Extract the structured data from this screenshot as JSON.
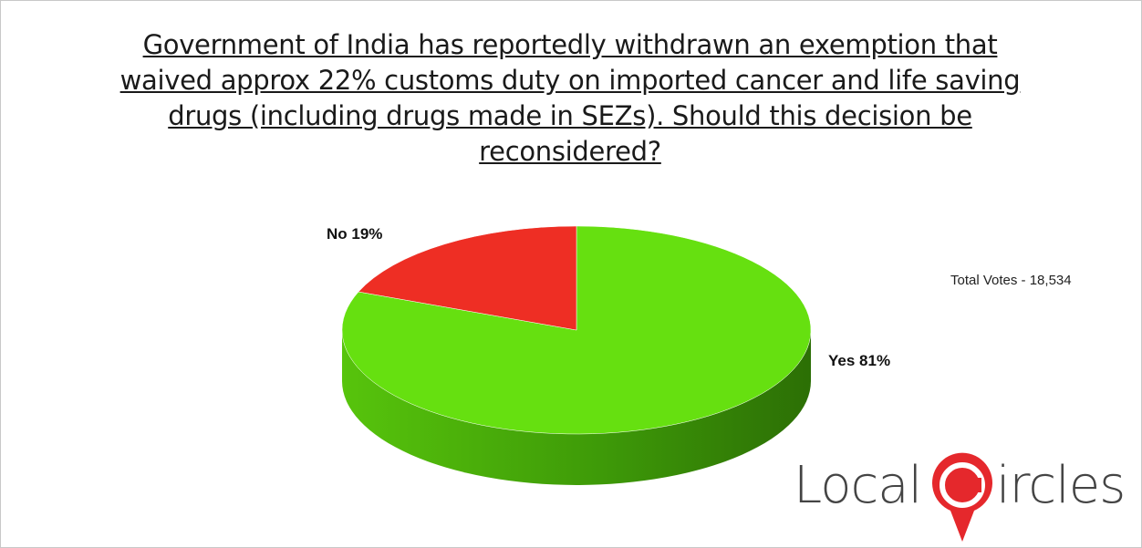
{
  "chart_data": {
    "type": "pie",
    "title": "Government of India has reportedly withdrawn an exemption that waived approx 22% customs duty on imported cancer and life saving drugs (including drugs made in SEZs). Should this decision be reconsidered?",
    "slices": [
      {
        "label": "Yes 81%",
        "value": 81,
        "color": "#66e010"
      },
      {
        "label": "No 19%",
        "value": 19,
        "color": "#ee2e24"
      }
    ],
    "style": "3d"
  },
  "annotation": {
    "total_votes": "Total Votes - 18,534"
  },
  "logo": {
    "text_left": "Local",
    "text_right": "ircles",
    "icon": "c-circle-pin-icon",
    "accent_color": "#e5282c"
  }
}
